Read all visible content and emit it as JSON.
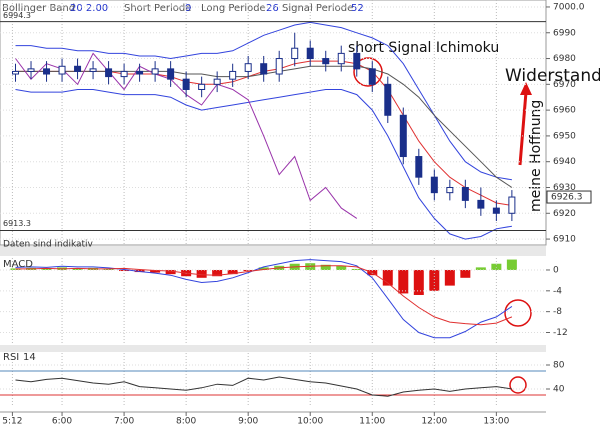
{
  "indicators": [
    {
      "label": "Bollinger Band",
      "params": "20  2.00"
    },
    {
      "label": "Short Periode",
      "params": "9"
    },
    {
      "label": "Long Periode",
      "params": "26"
    },
    {
      "label": "Signal Periode",
      "params": "52"
    }
  ],
  "note": "Daten sind indikativ",
  "chart_data": [
    {
      "type": "candlestick",
      "x": [
        5.25,
        5.5,
        5.75,
        6.0,
        6.25,
        6.5,
        6.75,
        7.0,
        7.25,
        7.5,
        7.75,
        8.0,
        8.25,
        8.5,
        8.75,
        9.0,
        9.25,
        9.5,
        9.75,
        10.0,
        10.25,
        10.5,
        10.75,
        11.0,
        11.25,
        11.5,
        11.75,
        12.0,
        12.25,
        12.5,
        12.75,
        13.0,
        13.25
      ],
      "open": [
        6974,
        6975,
        6976,
        6974,
        6977,
        6975,
        6976,
        6973,
        6975,
        6974,
        6976,
        6972,
        6968,
        6970,
        6972,
        6975,
        6978,
        6974,
        6980,
        6984,
        6980,
        6978,
        6982,
        6976,
        6970,
        6958,
        6942,
        6934,
        6928,
        6930,
        6925,
        6922,
        6920
      ],
      "high": [
        6978,
        6979,
        6979,
        6980,
        6980,
        6979,
        6979,
        6978,
        6978,
        6979,
        6979,
        6975,
        6973,
        6975,
        6978,
        6981,
        6981,
        6983,
        6990,
        6987,
        6983,
        6985,
        6985,
        6979,
        6973,
        6961,
        6945,
        6937,
        6933,
        6933,
        6930,
        6925,
        6929
      ],
      "low": [
        6971,
        6972,
        6971,
        6971,
        6972,
        6972,
        6970,
        6970,
        6971,
        6971,
        6969,
        6965,
        6965,
        6967,
        6969,
        6972,
        6971,
        6971,
        6977,
        6977,
        6975,
        6975,
        6973,
        6967,
        6955,
        6939,
        6931,
        6925,
        6925,
        6922,
        6919,
        6917,
        6917
      ],
      "close": [
        6975,
        6976,
        6974,
        6977,
        6975,
        6976,
        6973,
        6975,
        6974,
        6976,
        6972,
        6968,
        6970,
        6972,
        6975,
        6978,
        6974,
        6980,
        6984,
        6980,
        6978,
        6982,
        6976,
        6970,
        6958,
        6942,
        6934,
        6928,
        6930,
        6925,
        6922,
        6920,
        6926.3
      ],
      "series": [
        {
          "color": "#3344dd",
          "values": [
            6985,
            6985,
            6984,
            6984,
            6983,
            6983,
            6982,
            6982,
            6981,
            6981,
            6980,
            6981,
            6982,
            6982,
            6983,
            6986,
            6989,
            6991,
            6993,
            6994,
            6993,
            6992,
            6990,
            6988,
            6985,
            6978,
            6968,
            6958,
            6948,
            6940,
            6936,
            6934,
            6933
          ]
        },
        {
          "color": "#3344dd",
          "values": [
            6968,
            6967,
            6967,
            6967,
            6968,
            6968,
            6967,
            6966,
            6966,
            6966,
            6965,
            6962,
            6960,
            6961,
            6962,
            6963,
            6964,
            6965,
            6966,
            6967,
            6968,
            6968,
            6966,
            6960,
            6950,
            6938,
            6926,
            6918,
            6912,
            6910,
            6911,
            6914,
            6915
          ]
        },
        {
          "color": "#e03030",
          "values": [
            6975,
            6975,
            6975,
            6975,
            6975,
            6975,
            6975,
            6974,
            6974,
            6974,
            6973,
            6971,
            6970,
            6970,
            6971,
            6973,
            6975,
            6976,
            6978,
            6979,
            6979,
            6979,
            6978,
            6975,
            6968,
            6958,
            6948,
            6940,
            6934,
            6930,
            6927,
            6924,
            6923
          ]
        },
        {
          "color": "#555555",
          "values": [
            6975,
            6975,
            6975,
            6975,
            6975,
            6975,
            6975,
            6975,
            6975,
            6975,
            6975,
            6974,
            6974,
            6973,
            6973,
            6973,
            6974,
            6975,
            6976,
            6977,
            6977,
            6977,
            6977,
            6976,
            6974,
            6970,
            6965,
            6958,
            6952,
            6946,
            6940,
            6934,
            6930
          ]
        },
        {
          "color": "#9933aa",
          "values": [
            6980,
            6972,
            6978,
            6976,
            6970,
            6982,
            6975,
            6968,
            6977,
            6974,
            6972,
            6966,
            6962,
            6970,
            6968,
            6964,
            6950,
            6935,
            6942,
            6925,
            6930,
            6922,
            6918,
            null,
            null,
            null,
            null,
            null,
            null,
            null,
            null,
            null,
            null
          ]
        }
      ],
      "levels": [
        6994.3,
        6913.3
      ],
      "annotations": [
        "short Signal Ichimoku",
        "Widerstand",
        "meine Hoffnung"
      ],
      "xlim": [
        5,
        13.8
      ],
      "ylim": [
        6907.7,
        7002.7
      ],
      "yticks": [
        6910,
        6920,
        6930,
        6940,
        6950,
        6960,
        6970,
        6980,
        6990,
        {
          "value": 7000,
          "label": "7000.0"
        }
      ]
    },
    {
      "type": "bar",
      "title": "MACD",
      "x": [
        5.25,
        5.5,
        5.75,
        6.0,
        6.25,
        6.5,
        6.75,
        7.0,
        7.25,
        7.5,
        7.75,
        8.0,
        8.25,
        8.5,
        8.75,
        9.0,
        9.25,
        9.5,
        9.75,
        10.0,
        10.25,
        10.5,
        10.75,
        11.0,
        11.25,
        11.5,
        11.75,
        12.0,
        12.25,
        12.5,
        12.75,
        13.0,
        13.25
      ],
      "values": [
        0.3,
        0.4,
        0.2,
        0.5,
        0.3,
        0.4,
        0.2,
        -0.2,
        -0.4,
        -0.5,
        -0.8,
        -1.2,
        -1.5,
        -1.2,
        -0.8,
        -0.2,
        0.5,
        0.8,
        1.2,
        1.3,
        1.0,
        0.8,
        0.2,
        -1.0,
        -3.0,
        -4.5,
        -4.8,
        -4.0,
        -3.0,
        -1.5,
        0.5,
        1.2,
        2.0
      ],
      "colors": {
        "positive": "#77cc33",
        "negative": "#dd1111"
      },
      "series": [
        {
          "color": "#3344dd",
          "values": [
            0.5,
            0.6,
            0.5,
            0.7,
            0.6,
            0.6,
            0.4,
            0.1,
            -0.3,
            -0.6,
            -1.0,
            -1.8,
            -2.4,
            -2.2,
            -1.5,
            -0.5,
            0.6,
            1.2,
            1.8,
            2.0,
            1.8,
            1.6,
            0.8,
            -1.5,
            -5.5,
            -9.5,
            -12.0,
            -13.0,
            -13.0,
            -11.8,
            -10.0,
            -9.0,
            -7.0
          ]
        },
        {
          "color": "#e03030",
          "values": [
            0.2,
            0.2,
            0.3,
            0.2,
            0.3,
            0.2,
            0.2,
            0.3,
            0.1,
            -0.1,
            -0.2,
            -0.6,
            -0.9,
            -1.0,
            -0.7,
            -0.3,
            0.1,
            0.4,
            0.6,
            0.7,
            0.8,
            0.8,
            0.6,
            -0.5,
            -2.5,
            -5.0,
            -7.2,
            -9.0,
            -10.0,
            -10.3,
            -10.5,
            -10.2,
            -9.0
          ]
        }
      ],
      "xlim": [
        5,
        13.8
      ],
      "ylim": [
        -14.4,
        2.3
      ],
      "yticks": [
        0,
        -4,
        -8,
        -12
      ]
    },
    {
      "type": "line",
      "title": "RSI",
      "params": "14",
      "x": [
        5.25,
        5.5,
        5.75,
        6.0,
        6.25,
        6.5,
        6.75,
        7.0,
        7.25,
        7.5,
        7.75,
        8.0,
        8.25,
        8.5,
        8.75,
        9.0,
        9.25,
        9.5,
        9.75,
        10.0,
        10.25,
        10.5,
        10.75,
        11.0,
        11.25,
        11.5,
        11.75,
        12.0,
        12.25,
        12.5,
        12.75,
        13.0,
        13.25
      ],
      "values": [
        55,
        52,
        56,
        58,
        54,
        50,
        48,
        52,
        44,
        42,
        40,
        38,
        42,
        48,
        46,
        58,
        55,
        60,
        56,
        52,
        50,
        45,
        40,
        30,
        28,
        35,
        38,
        40,
        36,
        40,
        42,
        44,
        40
      ],
      "color": "#333333",
      "levels": [
        {
          "value": 70,
          "color": "#5588bb"
        },
        {
          "value": 30,
          "color": "#dd3333"
        }
      ],
      "xlim": [
        5,
        13.8
      ],
      "ylim": [
        10,
        100
      ],
      "yticks": [
        80,
        40
      ],
      "xticks": [
        {
          "value": 5.2,
          "label": "5:12"
        },
        {
          "value": 6,
          "label": "6:00"
        },
        {
          "value": 7,
          "label": "7:00"
        },
        {
          "value": 8,
          "label": "8:00"
        },
        {
          "value": 9,
          "label": "9:00"
        },
        {
          "value": 10,
          "label": "10:00"
        },
        {
          "value": 11,
          "label": "11:00"
        },
        {
          "value": 12,
          "label": "12:00"
        },
        {
          "value": 13,
          "label": "13:00"
        }
      ]
    }
  ]
}
